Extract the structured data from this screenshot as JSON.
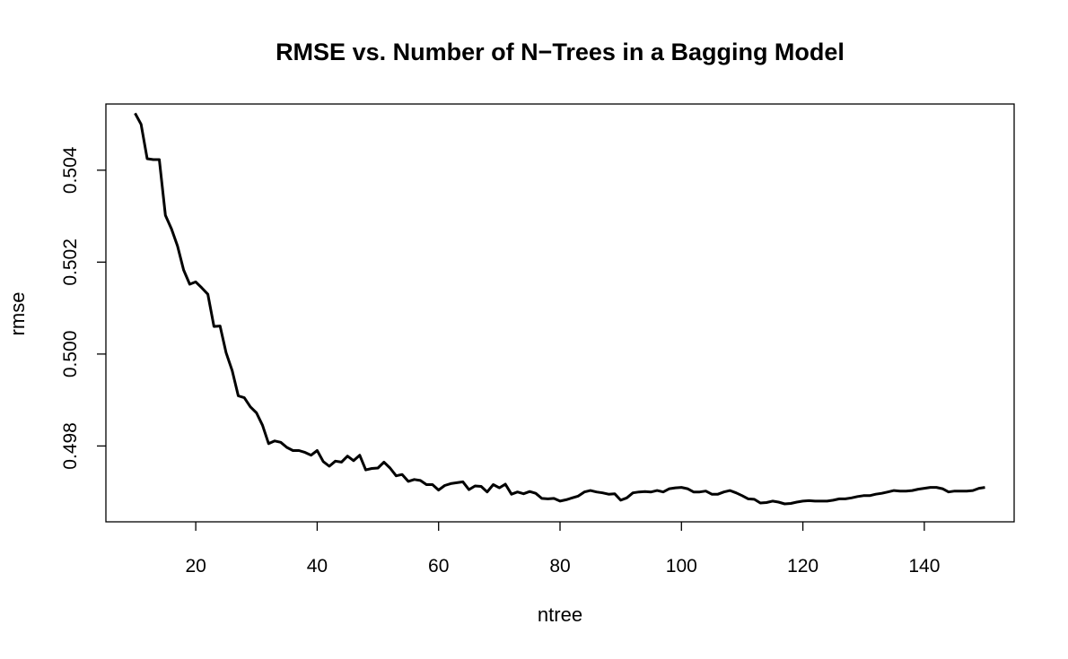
{
  "chart_data": {
    "type": "line",
    "title": "RMSE vs. Number of N−Trees in a Bagging Model",
    "xlabel": "ntree",
    "ylabel": "rmse",
    "xlim": [
      5.2,
      154.8
    ],
    "ylim": [
      0.49635,
      0.50544
    ],
    "x_ticks": [
      20,
      40,
      60,
      80,
      100,
      120,
      140
    ],
    "y_ticks": [
      0.498,
      0.5,
      0.502,
      0.504
    ],
    "x_tick_labels": [
      "20",
      "40",
      "60",
      "80",
      "100",
      "120",
      "140"
    ],
    "y_tick_labels": [
      "0.498",
      "0.500",
      "0.502",
      "0.504"
    ],
    "grid": false,
    "series": [
      {
        "color": "#000000",
        "x": [
          10,
          11,
          12,
          13,
          14,
          15,
          16,
          17,
          18,
          19,
          20,
          21,
          22,
          23,
          24,
          25,
          26,
          27,
          28,
          29,
          30,
          31,
          32,
          33,
          34,
          35,
          36,
          37,
          38,
          39,
          40,
          41,
          42,
          43,
          44,
          45,
          46,
          47,
          48,
          49,
          50,
          51,
          52,
          53,
          54,
          55,
          56,
          57,
          58,
          59,
          60,
          61,
          62,
          63,
          64,
          65,
          66,
          67,
          68,
          69,
          70,
          71,
          72,
          73,
          74,
          75,
          76,
          77,
          78,
          79,
          80,
          81,
          82,
          83,
          84,
          85,
          86,
          87,
          88,
          89,
          90,
          91,
          92,
          93,
          94,
          95,
          96,
          97,
          98,
          99,
          100,
          101,
          102,
          103,
          104,
          105,
          106,
          107,
          108,
          109,
          110,
          111,
          112,
          113,
          114,
          115,
          116,
          117,
          118,
          119,
          120,
          121,
          122,
          123,
          124,
          125,
          126,
          127,
          128,
          129,
          130,
          131,
          132,
          133,
          134,
          135,
          136,
          137,
          138,
          139,
          140,
          141,
          142,
          143,
          144,
          145,
          146,
          147,
          148,
          149,
          150
        ],
        "values": [
          0.50524,
          0.505,
          0.50425,
          0.50423,
          0.50423,
          0.50302,
          0.50272,
          0.50235,
          0.50183,
          0.50152,
          0.50157,
          0.50144,
          0.5013,
          0.5006,
          0.50061,
          0.50003,
          0.49964,
          0.49909,
          0.49905,
          0.49885,
          0.49872,
          0.49845,
          0.49805,
          0.49811,
          0.49808,
          0.49797,
          0.4979,
          0.4979,
          0.49786,
          0.4978,
          0.4979,
          0.49766,
          0.49756,
          0.49767,
          0.49765,
          0.49778,
          0.49768,
          0.4978,
          0.49748,
          0.49751,
          0.49752,
          0.49765,
          0.49752,
          0.49735,
          0.49738,
          0.49723,
          0.49727,
          0.49725,
          0.49716,
          0.49716,
          0.49704,
          0.49714,
          0.49718,
          0.4972,
          0.49722,
          0.49705,
          0.49713,
          0.49712,
          0.497,
          0.49716,
          0.49709,
          0.49717,
          0.49695,
          0.497,
          0.49696,
          0.49701,
          0.49697,
          0.49686,
          0.49685,
          0.49686,
          0.4968,
          0.49683,
          0.49687,
          0.49691,
          0.497,
          0.49703,
          0.497,
          0.49698,
          0.49695,
          0.49696,
          0.49682,
          0.49687,
          0.49698,
          0.497,
          0.49701,
          0.497,
          0.49703,
          0.497,
          0.49707,
          0.49709,
          0.4971,
          0.49707,
          0.497,
          0.497,
          0.49702,
          0.49695,
          0.49695,
          0.497,
          0.49703,
          0.49698,
          0.49692,
          0.49685,
          0.49684,
          0.49676,
          0.49677,
          0.4968,
          0.49678,
          0.49674,
          0.49675,
          0.49678,
          0.4968,
          0.49681,
          0.4968,
          0.4968,
          0.4968,
          0.49682,
          0.49685,
          0.49685,
          0.49687,
          0.4969,
          0.49692,
          0.49692,
          0.49695,
          0.49697,
          0.497,
          0.49703,
          0.49702,
          0.49702,
          0.49703,
          0.49706,
          0.49708,
          0.4971,
          0.4971,
          0.49707,
          0.497,
          0.49702,
          0.49702,
          0.49702,
          0.49703,
          0.49708,
          0.4971
        ]
      }
    ]
  }
}
